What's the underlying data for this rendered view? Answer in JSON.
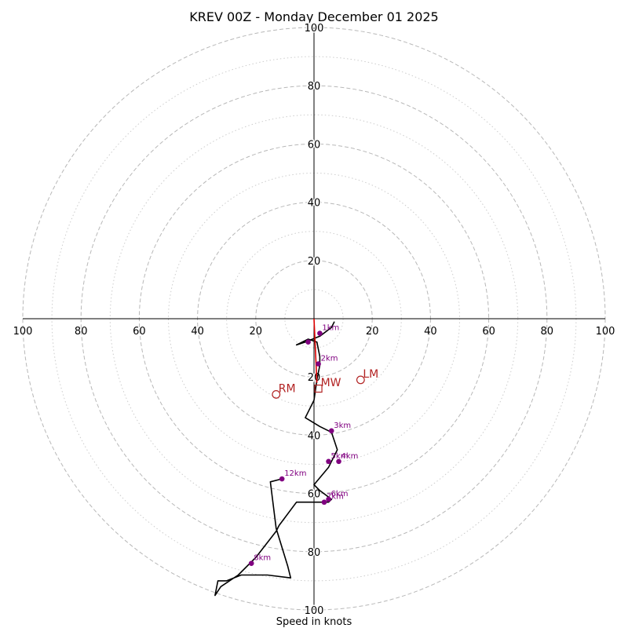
{
  "chart_data": {
    "type": "hodograph",
    "title": "KREV 00Z - Monday December 01 2025",
    "xlabel": "Speed in knots",
    "units": "knots",
    "range": [
      -100,
      100
    ],
    "rings": [
      20,
      40,
      60,
      80,
      100
    ],
    "minor_rings": [
      10,
      30,
      50,
      70,
      90
    ],
    "axis_tick_labels": [
      "100",
      "80",
      "60",
      "40",
      "20",
      "20",
      "40",
      "60",
      "80",
      "100"
    ],
    "trace": [
      {
        "u": 7,
        "v": -1
      },
      {
        "u": 6,
        "v": -3
      },
      {
        "u": 2,
        "v": -6
      },
      {
        "u": -3,
        "v": -8
      },
      {
        "u": -6,
        "v": -9
      },
      {
        "u": -2,
        "v": -7
      },
      {
        "u": 1,
        "v": -8
      },
      {
        "u": 2,
        "v": -13
      },
      {
        "u": 2,
        "v": -16
      },
      {
        "u": 1,
        "v": -21
      },
      {
        "u": 0,
        "v": -28
      },
      {
        "u": -2,
        "v": -32
      },
      {
        "u": -3,
        "v": -34
      },
      {
        "u": 2,
        "v": -37
      },
      {
        "u": 6,
        "v": -39
      },
      {
        "u": 7,
        "v": -42
      },
      {
        "u": 8,
        "v": -45
      },
      {
        "u": 5,
        "v": -51
      },
      {
        "u": 0,
        "v": -57
      },
      {
        "u": 2,
        "v": -59
      },
      {
        "u": 6,
        "v": -62
      },
      {
        "u": 5,
        "v": -63
      },
      {
        "u": 0,
        "v": -63
      },
      {
        "u": -6,
        "v": -63
      },
      {
        "u": -12,
        "v": -71
      },
      {
        "u": -13,
        "v": -73
      },
      {
        "u": -20,
        "v": -82
      },
      {
        "u": -26,
        "v": -88
      },
      {
        "u": -32,
        "v": -92
      },
      {
        "u": -34,
        "v": -95
      },
      {
        "u": -33,
        "v": -90
      },
      {
        "u": -30,
        "v": -90
      },
      {
        "u": -25,
        "v": -88
      },
      {
        "u": -16,
        "v": -88
      },
      {
        "u": -8,
        "v": -89
      },
      {
        "u": -9,
        "v": -85
      },
      {
        "u": -13,
        "v": -72
      },
      {
        "u": -15,
        "v": -56
      },
      {
        "u": -11,
        "v": -55
      }
    ],
    "height_markers": [
      {
        "label": "1km",
        "u": 2,
        "v": -5
      },
      {
        "label": "",
        "u": -2,
        "v": -8
      },
      {
        "label": "2km",
        "u": 1.5,
        "v": -15.5
      },
      {
        "label": "3km",
        "u": 6,
        "v": -38.5
      },
      {
        "label": "5km",
        "u": 5,
        "v": -49
      },
      {
        "label": "4km",
        "u": 8.5,
        "v": -49
      },
      {
        "label": "7km",
        "u": 3.5,
        "v": -63
      },
      {
        "label": "6km",
        "u": 5,
        "v": -62
      },
      {
        "label": "12km",
        "u": -11,
        "v": -55
      },
      {
        "label": "8km",
        "u": -21.5,
        "v": -84
      }
    ],
    "shear_line": [
      {
        "u": 0,
        "v": 0
      },
      {
        "u": 1,
        "v": -22
      }
    ],
    "storm_motion": [
      {
        "label": "RM",
        "u": -13,
        "v": -26,
        "marker": "circle"
      },
      {
        "label": "LM",
        "u": 16,
        "v": -21,
        "marker": "circle"
      },
      {
        "label": "MW",
        "u": 1.5,
        "v": -24,
        "marker": "square"
      }
    ],
    "colors": {
      "trace": "#000000",
      "markers": "#800080",
      "motion": "#b22222",
      "shear": "#dd0000",
      "rings": "#b8b8b8",
      "minor_rings": "#cccccc"
    }
  }
}
